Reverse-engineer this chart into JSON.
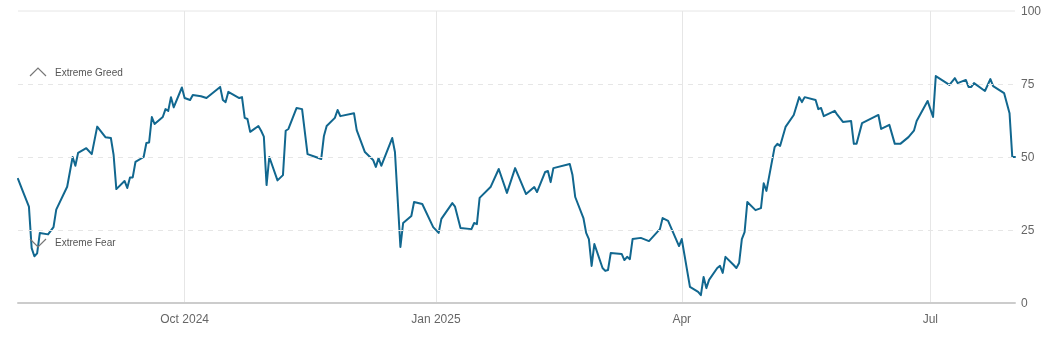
{
  "chart_data": {
    "type": "line",
    "x": [
      "2024-08-01",
      "2024-08-03",
      "2024-08-05",
      "2024-08-06",
      "2024-08-07",
      "2024-08-08",
      "2024-08-09",
      "2024-08-12",
      "2024-08-14",
      "2024-08-15",
      "2024-08-19",
      "2024-08-21",
      "2024-08-22",
      "2024-08-23",
      "2024-08-26",
      "2024-08-28",
      "2024-08-30",
      "2024-09-02",
      "2024-09-04",
      "2024-09-05",
      "2024-09-06",
      "2024-09-09",
      "2024-09-10",
      "2024-09-11",
      "2024-09-12",
      "2024-09-13",
      "2024-09-16",
      "2024-09-17",
      "2024-09-18",
      "2024-09-19",
      "2024-09-20",
      "2024-09-23",
      "2024-09-24",
      "2024-09-25",
      "2024-09-26",
      "2024-09-27",
      "2024-09-30",
      "2024-10-01",
      "2024-10-03",
      "2024-10-04",
      "2024-10-07",
      "2024-10-09",
      "2024-10-14",
      "2024-10-15",
      "2024-10-16",
      "2024-10-17",
      "2024-10-21",
      "2024-10-22",
      "2024-10-23",
      "2024-10-24",
      "2024-10-25",
      "2024-10-28",
      "2024-10-29",
      "2024-10-30",
      "2024-10-31",
      "2024-11-01",
      "2024-11-04",
      "2024-11-06",
      "2024-11-07",
      "2024-11-08",
      "2024-11-11",
      "2024-11-13",
      "2024-11-15",
      "2024-11-18",
      "2024-11-20",
      "2024-11-21",
      "2024-11-22",
      "2024-11-25",
      "2024-11-26",
      "2024-11-27",
      "2024-12-02",
      "2024-12-03",
      "2024-12-06",
      "2024-12-09",
      "2024-12-10",
      "2024-12-11",
      "2024-12-12",
      "2024-12-16",
      "2024-12-17",
      "2024-12-19",
      "2024-12-20",
      "2024-12-23",
      "2024-12-24",
      "2024-12-27",
      "2024-12-31",
      "2025-01-02",
      "2025-01-03",
      "2025-01-07",
      "2025-01-08",
      "2025-01-10",
      "2025-01-14",
      "2025-01-15",
      "2025-01-16",
      "2025-01-17",
      "2025-01-21",
      "2025-01-24",
      "2025-01-27",
      "2025-01-30",
      "2025-02-03",
      "2025-02-06",
      "2025-02-07",
      "2025-02-10",
      "2025-02-11",
      "2025-02-12",
      "2025-02-13",
      "2025-02-19",
      "2025-02-20",
      "2025-02-21",
      "2025-02-24",
      "2025-02-25",
      "2025-02-26",
      "2025-02-27",
      "2025-02-28",
      "2025-03-03",
      "2025-03-04",
      "2025-03-05",
      "2025-03-06",
      "2025-03-10",
      "2025-03-11",
      "2025-03-12",
      "2025-03-13",
      "2025-03-14",
      "2025-03-17",
      "2025-03-20",
      "2025-03-24",
      "2025-03-25",
      "2025-03-27",
      "2025-03-31",
      "2025-04-01",
      "2025-04-04",
      "2025-04-07",
      "2025-04-08",
      "2025-04-09",
      "2025-04-10",
      "2025-04-11",
      "2025-04-14",
      "2025-04-15",
      "2025-04-16",
      "2025-04-17",
      "2025-04-20",
      "2025-04-21",
      "2025-04-22",
      "2025-04-23",
      "2025-04-24",
      "2025-04-25",
      "2025-04-28",
      "2025-04-30",
      "2025-05-01",
      "2025-05-02",
      "2025-05-05",
      "2025-05-06",
      "2025-05-07",
      "2025-05-09",
      "2025-05-12",
      "2025-05-14",
      "2025-05-15",
      "2025-05-16",
      "2025-05-20",
      "2025-05-21",
      "2025-05-22",
      "2025-05-23",
      "2025-05-27",
      "2025-05-28",
      "2025-05-30",
      "2025-06-02",
      "2025-06-03",
      "2025-06-04",
      "2025-06-06",
      "2025-06-12",
      "2025-06-13",
      "2025-06-16",
      "2025-06-18",
      "2025-06-20",
      "2025-06-23",
      "2025-06-25",
      "2025-06-26",
      "2025-06-30",
      "2025-07-02",
      "2025-07-03",
      "2025-07-08",
      "2025-07-10",
      "2025-07-11",
      "2025-07-14",
      "2025-07-15",
      "2025-07-16",
      "2025-07-17",
      "2025-07-21",
      "2025-07-23",
      "2025-07-24",
      "2025-07-28",
      "2025-07-30",
      "2025-07-31",
      "2025-08-01"
    ],
    "series": [
      {
        "color": "#11678f",
        "values": [
          42.5,
          37.7,
          33,
          18.8,
          16,
          17,
          24,
          23.5,
          26,
          32,
          39.8,
          50,
          47,
          51.4,
          53,
          51,
          60.4,
          56.8,
          56.5,
          50.7,
          39,
          41.8,
          39.4,
          43,
          43,
          48.3,
          50,
          54.8,
          55,
          63.7,
          61.3,
          63.7,
          66.4,
          65.8,
          70.5,
          67,
          73.8,
          70.2,
          69.5,
          71.2,
          70.8,
          70.2,
          74,
          69.5,
          68.8,
          72.3,
          70.2,
          70.5,
          63.4,
          63,
          58.6,
          60.6,
          59,
          57,
          40.4,
          50,
          42,
          43.8,
          59,
          59.6,
          66.8,
          66.4,
          51,
          50,
          49.3,
          57.2,
          60.6,
          63.4,
          66.1,
          64,
          65,
          59.2,
          51.7,
          49,
          46.6,
          49.6,
          47,
          56.5,
          51.7,
          19.2,
          27.4,
          29.8,
          34.6,
          33.9,
          26,
          24,
          28.8,
          34.2,
          33,
          25.7,
          25.3,
          27.4,
          27,
          36,
          39.7,
          45.9,
          37.7,
          46.2,
          37.3,
          39.7,
          38,
          44.9,
          45.2,
          41.4,
          46.2,
          47.6,
          43.8,
          36.3,
          29.1,
          24,
          21.9,
          12.7,
          20.2,
          12,
          11,
          11.3,
          17.1,
          16.8,
          14.7,
          15.8,
          15,
          21.9,
          22.3,
          21.2,
          25.3,
          29.1,
          28.1,
          19.5,
          21.9,
          5.5,
          3.8,
          2.7,
          8.9,
          5.1,
          7.9,
          12,
          12.7,
          10.3,
          15.8,
          13,
          12,
          13.7,
          21.9,
          24.3,
          34.6,
          31.8,
          32.5,
          41,
          38.4,
          53.4,
          54.5,
          53.8,
          60.3,
          64.4,
          70.5,
          68.8,
          70.5,
          69.5,
          66.4,
          66.8,
          64,
          65.8,
          64.4,
          62,
          62.3,
          54.5,
          54.5,
          61.6,
          64.4,
          59.6,
          61,
          54.5,
          54.5,
          56.8,
          59,
          62.3,
          69.2,
          63.7,
          77.7,
          74.7,
          77,
          75.3,
          76.4,
          74,
          74,
          75.3,
          72.6,
          76.7,
          74.3,
          71.9,
          65,
          50,
          50
        ]
      }
    ],
    "xlim": [
      "2024-08-01",
      "2025-08-01"
    ],
    "xticks": [
      {
        "value": "2024-10-01",
        "label": "Oct 2024"
      },
      {
        "value": "2025-01-01",
        "label": "Jan 2025"
      },
      {
        "value": "2025-04-01",
        "label": "Apr"
      },
      {
        "value": "2025-07-01",
        "label": "Jul"
      }
    ],
    "ylim": [
      0,
      100
    ],
    "yticks": [
      0,
      25,
      50,
      75,
      100
    ],
    "grid": "x",
    "marker": "none",
    "line_style": "solid",
    "ref_lines": [
      {
        "axis": "y",
        "value": 75,
        "label": "Extreme Greed",
        "color": "#e6e6e6",
        "line_style": "dashed"
      },
      {
        "axis": "y",
        "value": 25,
        "label": "Extreme Fear",
        "color": "#e6e6e6",
        "line_style": "dashed"
      },
      {
        "axis": "y",
        "value": 50,
        "color": "#e6e6e6",
        "line_style": "dashed"
      }
    ]
  }
}
